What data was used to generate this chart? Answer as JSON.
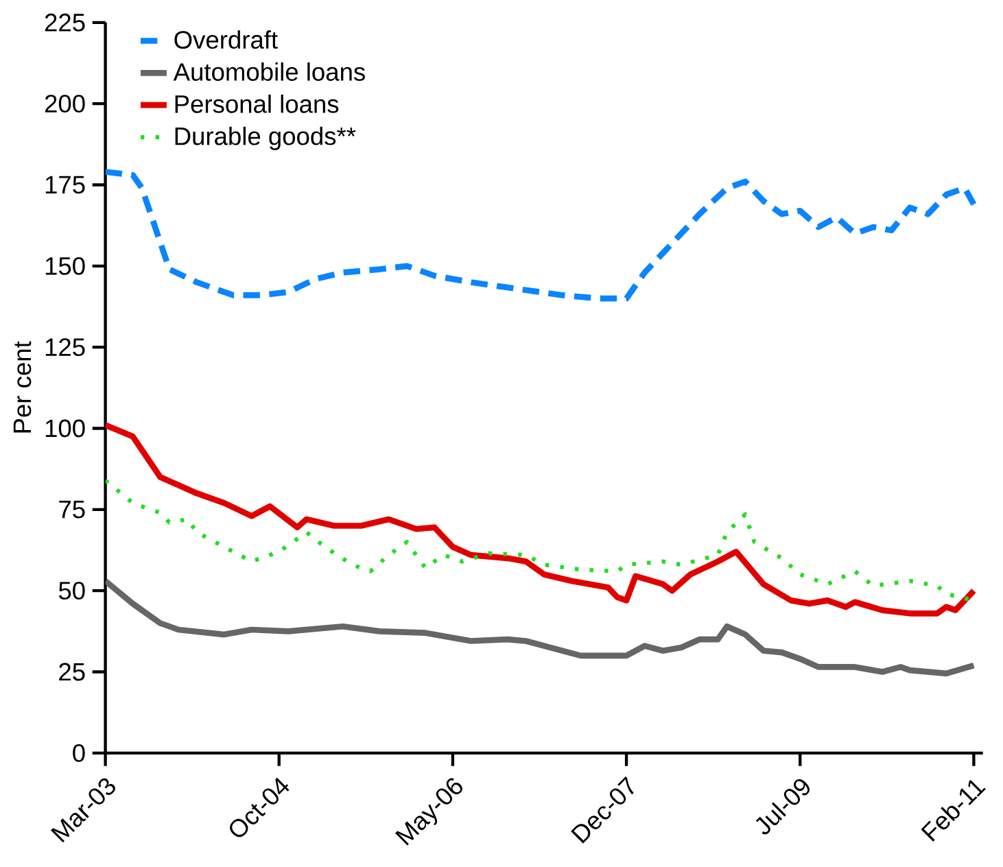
{
  "chart_data": {
    "type": "line",
    "ylabel": "Per cent",
    "xlim": [
      "2003-03",
      "2011-03"
    ],
    "ylim": [
      0,
      225
    ],
    "xticks": [
      {
        "value": "2003-03",
        "label": "Mar-03"
      },
      {
        "value": "2004-10",
        "label": "Oct-04"
      },
      {
        "value": "2006-05",
        "label": "May-06"
      },
      {
        "value": "2007-12",
        "label": "Dec-07"
      },
      {
        "value": "2009-07",
        "label": "Jul-09"
      },
      {
        "value": "2011-02",
        "label": "Feb-11"
      }
    ],
    "yticks": [
      0,
      25,
      50,
      75,
      100,
      125,
      150,
      175,
      200,
      225
    ],
    "grid": false,
    "legend": "top left",
    "series": [
      {
        "name": "Overdraft",
        "color": "#0a84ff",
        "line_style": "dashed",
        "x": [
          "2003-03",
          "2003-06",
          "2003-07",
          "2003-10",
          "2004-01",
          "2004-05",
          "2004-08",
          "2004-11",
          "2005-02",
          "2005-05",
          "2005-09",
          "2005-12",
          "2006-03",
          "2006-07",
          "2006-12",
          "2007-05",
          "2007-09",
          "2007-12",
          "2008-02",
          "2008-05",
          "2008-08",
          "2008-11",
          "2009-01",
          "2009-03",
          "2009-05",
          "2009-07",
          "2009-09",
          "2009-11",
          "2010-01",
          "2010-03",
          "2010-05",
          "2010-07",
          "2010-09",
          "2010-11",
          "2011-01",
          "2011-02"
        ],
        "values": [
          179,
          178,
          174,
          149,
          145,
          141,
          141,
          142,
          146,
          148,
          149,
          150,
          147,
          145,
          143,
          141,
          140,
          140,
          148,
          157,
          166,
          174,
          176,
          170,
          166,
          167,
          162,
          165,
          160,
          162,
          161,
          168,
          166,
          172,
          174,
          169
        ]
      },
      {
        "name": "Automobile loans",
        "color": "#666666",
        "line_style": "solid",
        "x": [
          "2003-03",
          "2003-06",
          "2003-09",
          "2003-11",
          "2004-04",
          "2004-07",
          "2004-11",
          "2005-05",
          "2005-09",
          "2006-02",
          "2006-07",
          "2006-11",
          "2007-01",
          "2007-03",
          "2007-07",
          "2007-12",
          "2008-02",
          "2008-04",
          "2008-06",
          "2008-08",
          "2008-10",
          "2008-11",
          "2009-01",
          "2009-03",
          "2009-05",
          "2009-07",
          "2009-09",
          "2010-01",
          "2010-04",
          "2010-06",
          "2010-07",
          "2010-11",
          "2011-02"
        ],
        "values": [
          53,
          46,
          40,
          38,
          36.5,
          38,
          37.5,
          39,
          37.5,
          37,
          34.5,
          35,
          34.5,
          33,
          30,
          30,
          33,
          31.5,
          32.5,
          35,
          35,
          39,
          36.5,
          31.5,
          31,
          29,
          26.5,
          26.5,
          25,
          26.5,
          25.5,
          24.5,
          27
        ]
      },
      {
        "name": "Personal loans",
        "color": "#e00000",
        "line_style": "solid",
        "x": [
          "2003-03",
          "2003-06",
          "2003-09",
          "2004-01",
          "2004-04",
          "2004-07",
          "2004-09",
          "2004-12",
          "2005-01",
          "2005-04",
          "2005-07",
          "2005-10",
          "2006-01",
          "2006-03",
          "2006-05",
          "2006-07",
          "2006-11",
          "2007-01",
          "2007-03",
          "2007-06",
          "2007-10",
          "2007-11",
          "2007-12",
          "2008-01",
          "2008-04",
          "2008-05",
          "2008-07",
          "2008-10",
          "2008-12",
          "2009-03",
          "2009-06",
          "2009-08",
          "2009-10",
          "2009-12",
          "2010-01",
          "2010-04",
          "2010-07",
          "2010-10",
          "2010-11",
          "2010-12",
          "2011-02"
        ],
        "values": [
          101,
          97.5,
          85,
          80,
          77,
          73,
          76,
          69.5,
          72,
          70,
          70,
          72,
          69,
          69.5,
          63.5,
          61,
          60,
          59,
          55,
          53,
          51,
          48,
          47,
          54.5,
          52,
          50,
          55,
          59,
          62,
          52,
          47,
          46,
          47,
          45,
          46.5,
          44,
          43,
          43,
          45,
          44,
          50
        ]
      },
      {
        "name": "Durable goods**",
        "color": "#22dd22",
        "line_style": "dotted",
        "x": [
          "2003-03",
          "2003-06",
          "2003-09",
          "2003-10",
          "2003-12",
          "2004-01",
          "2004-04",
          "2004-07",
          "2004-10",
          "2005-01",
          "2005-03",
          "2005-06",
          "2005-08",
          "2005-10",
          "2005-12",
          "2006-02",
          "2006-04",
          "2006-06",
          "2006-09",
          "2007-01",
          "2007-03",
          "2007-07",
          "2007-11",
          "2007-12",
          "2008-04",
          "2008-06",
          "2008-10",
          "2008-11",
          "2009-01",
          "2009-02",
          "2009-05",
          "2009-07",
          "2009-10",
          "2010-01",
          "2010-03",
          "2010-07",
          "2010-10",
          "2010-11",
          "2011-02"
        ],
        "values": [
          84,
          77,
          74,
          71,
          72,
          68,
          63.5,
          59,
          62,
          68,
          63.5,
          58,
          56,
          61,
          65,
          57,
          61,
          59,
          61.5,
          61,
          58,
          56.5,
          56,
          58,
          59,
          58,
          61,
          68,
          73.5,
          65,
          60,
          55,
          52,
          56,
          51.5,
          53,
          51.5,
          49,
          47
        ]
      }
    ]
  }
}
